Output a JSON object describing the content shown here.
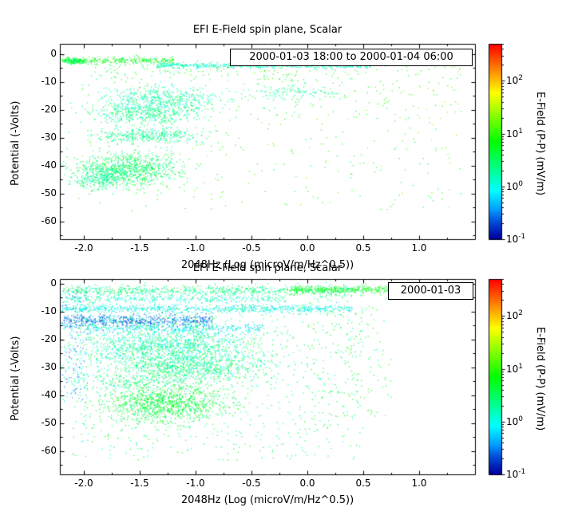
{
  "figure": {
    "background": "#ffffff",
    "frame_color": "#000000"
  },
  "chart_data": [
    {
      "type": "scatter",
      "title": "EFI  E-Field spin plane, Scalar",
      "legend": "2000-01-03 18:00 to 2000-01-04 06:00",
      "xlabel": "2048Hz (Log (microV/m/Hz^0.5))",
      "ylabel": "Potential (-Volts)",
      "colorbar_label": "E-Field (P-P) (mV/m)",
      "xlim": [
        -2.2143,
        1.5
      ],
      "ylim": [
        -66.3,
        3.7
      ],
      "xtick_values": [
        -2.0,
        -1.5,
        -1.0,
        -0.5,
        0.0,
        0.5,
        1.0
      ],
      "xtick_labels": [
        "-2.0",
        "-1.5",
        "-1.0",
        "-0.5",
        "0.0",
        "0.5",
        "1.0"
      ],
      "ytick_values": [
        0,
        -10,
        -20,
        -30,
        -40,
        -50,
        -60
      ],
      "ytick_labels": [
        "0",
        "-10",
        "-20",
        "-30",
        "-40",
        "-50",
        "-60"
      ],
      "color_scale": {
        "type": "log",
        "range_log10": [
          -1,
          2.7
        ],
        "tick_exponents": [
          -1,
          0,
          1,
          2
        ],
        "colormap": "rainbow blue-cyan-green-yellow-red"
      },
      "grid": false,
      "legend_position": "top-right",
      "clusters": [
        {
          "n": 320,
          "ux": 1,
          "x": -2.2,
          "sx": 1.0,
          "uy": 0,
          "y": -2.1,
          "sy": 0.6,
          "lv": [
            0.4,
            1.2
          ]
        },
        {
          "n": 140,
          "ux": 0,
          "x": -2.08,
          "sx": 0.06,
          "uy": 0,
          "y": -2.3,
          "sy": 0.5,
          "lv": [
            0.2,
            0.9
          ]
        },
        {
          "n": 560,
          "ux": 1,
          "x": -1.35,
          "sx": 1.92,
          "uy": 0,
          "y": -3.9,
          "sy": 0.45,
          "lv": [
            -0.1,
            0.4
          ]
        },
        {
          "n": 130,
          "ux": 1,
          "x": -1.95,
          "sx": 2.2,
          "uy": 1,
          "y": -9.0,
          "sy": 7.0,
          "lv": [
            0.4,
            1.1
          ]
        },
        {
          "n": 480,
          "ux": 0,
          "x": -1.3,
          "sx": 0.27,
          "uy": 0,
          "y": -16,
          "sy": 2.2,
          "lv": [
            -0.1,
            0.6
          ]
        },
        {
          "n": 430,
          "ux": 0,
          "x": -1.45,
          "sx": 0.22,
          "uy": 0,
          "y": -21,
          "sy": 2.0,
          "lv": [
            0.0,
            0.7
          ]
        },
        {
          "n": 120,
          "ux": 0,
          "x": -0.15,
          "sx": 0.2,
          "uy": 0,
          "y": -13.5,
          "sy": 1.3,
          "lv": [
            0.0,
            0.6
          ]
        },
        {
          "n": 360,
          "ux": 0,
          "x": -1.4,
          "sx": 0.26,
          "uy": 0,
          "y": -29,
          "sy": 1.5,
          "lv": [
            0.0,
            0.7
          ]
        },
        {
          "n": 850,
          "ux": 0,
          "x": -1.6,
          "sx": 0.22,
          "uy": 0,
          "y": -41,
          "sy": 3.0,
          "lv": [
            0.1,
            0.9
          ]
        },
        {
          "n": 260,
          "ux": 0,
          "x": -1.85,
          "sx": 0.12,
          "uy": 0,
          "y": -44,
          "sy": 2.2,
          "lv": [
            0.0,
            0.7
          ]
        },
        {
          "n": 360,
          "ux": 1,
          "x": -2.05,
          "sx": 3.45,
          "uy": 1,
          "y": -56,
          "sy": 54,
          "lv": [
            0.5,
            1.3
          ]
        },
        {
          "n": 70,
          "ux": 1,
          "x": -0.5,
          "sx": 1.9,
          "uy": 1,
          "y": -25,
          "sy": 20,
          "lv": [
            0.7,
            1.4
          ]
        }
      ]
    },
    {
      "type": "scatter",
      "title": "EFI  E-Field spin plane, Scalar",
      "legend": "2000-01-03",
      "xlabel": "2048Hz (Log (microV/m/Hz^0.5))",
      "ylabel": "Potential (-Volts)",
      "colorbar_label": "E-Field (P-P) (mV/m)",
      "xlim": [
        -2.2143,
        1.5
      ],
      "ylim": [
        -68.3,
        1.7
      ],
      "xtick_values": [
        -2.0,
        -1.5,
        -1.0,
        -0.5,
        0.0,
        0.5,
        1.0
      ],
      "xtick_labels": [
        "-2.0",
        "-1.5",
        "-1.0",
        "-0.5",
        "0.0",
        "0.5",
        "1.0"
      ],
      "ytick_values": [
        0,
        -10,
        -20,
        -30,
        -40,
        -50,
        -60
      ],
      "ytick_labels": [
        "0",
        "-10",
        "-20",
        "-30",
        "-40",
        "-50",
        "-60"
      ],
      "color_scale": {
        "type": "log",
        "range_log10": [
          -1,
          2.7
        ],
        "tick_exponents": [
          -1,
          0,
          1,
          2
        ],
        "colormap": "rainbow blue-cyan-green-yellow-red"
      },
      "grid": false,
      "legend_position": "top-right",
      "clusters": [
        {
          "n": 650,
          "ux": 1,
          "x": -2.2,
          "sx": 2.6,
          "uy": 0,
          "y": -2.2,
          "sy": 0.9,
          "lv": [
            0.0,
            0.8
          ]
        },
        {
          "n": 330,
          "ux": 1,
          "x": -0.15,
          "sx": 0.9,
          "uy": 0,
          "y": -2.0,
          "sy": 0.7,
          "lv": [
            0.5,
            1.1
          ]
        },
        {
          "n": 330,
          "ux": 1,
          "x": -2.2,
          "sx": 2.0,
          "uy": 0,
          "y": -5.2,
          "sy": 0.8,
          "lv": [
            -0.2,
            0.4
          ]
        },
        {
          "n": 680,
          "ux": 1,
          "x": -2.2,
          "sx": 2.6,
          "uy": 0,
          "y": -8.8,
          "sy": 0.7,
          "lv": [
            -0.3,
            0.3
          ]
        },
        {
          "n": 560,
          "ux": 1,
          "x": -2.2,
          "sx": 1.35,
          "uy": 0,
          "y": -13.0,
          "sy": 1.0,
          "lv": [
            -0.9,
            -0.2
          ]
        },
        {
          "n": 300,
          "ux": 1,
          "x": -2.0,
          "sx": 1.6,
          "uy": 0,
          "y": -15.8,
          "sy": 0.9,
          "lv": [
            -0.5,
            0.2
          ]
        },
        {
          "n": 1500,
          "ux": 0,
          "x": -1.25,
          "sx": 0.42,
          "uy": 0,
          "y": -22,
          "sy": 4.5,
          "lv": [
            -0.2,
            0.7
          ]
        },
        {
          "n": 650,
          "ux": 0,
          "x": -1.05,
          "sx": 0.34,
          "uy": 0,
          "y": -30,
          "sy": 2.5,
          "lv": [
            0.0,
            0.8
          ]
        },
        {
          "n": 260,
          "ux": 0,
          "x": -1.5,
          "sx": 0.3,
          "uy": 0,
          "y": -35,
          "sy": 2.0,
          "lv": [
            0.1,
            0.8
          ]
        },
        {
          "n": 1050,
          "ux": 0,
          "x": -1.3,
          "sx": 0.28,
          "uy": 0,
          "y": -43,
          "sy": 3.2,
          "lv": [
            0.3,
            1.0
          ]
        },
        {
          "n": 800,
          "ux": 1,
          "x": -2.1,
          "sx": 2.6,
          "uy": 1,
          "y": -63,
          "sy": 61,
          "lv": [
            0.0,
            0.9
          ]
        },
        {
          "n": 190,
          "ux": 1,
          "x": -2.22,
          "sx": 0.25,
          "uy": 1,
          "y": -42,
          "sy": 40,
          "lv": [
            -0.8,
            0.2
          ]
        },
        {
          "n": 140,
          "ux": 1,
          "x": 0.0,
          "sx": 0.75,
          "uy": 1,
          "y": -48,
          "sy": 43,
          "lv": [
            0.4,
            1.1
          ]
        }
      ]
    }
  ]
}
